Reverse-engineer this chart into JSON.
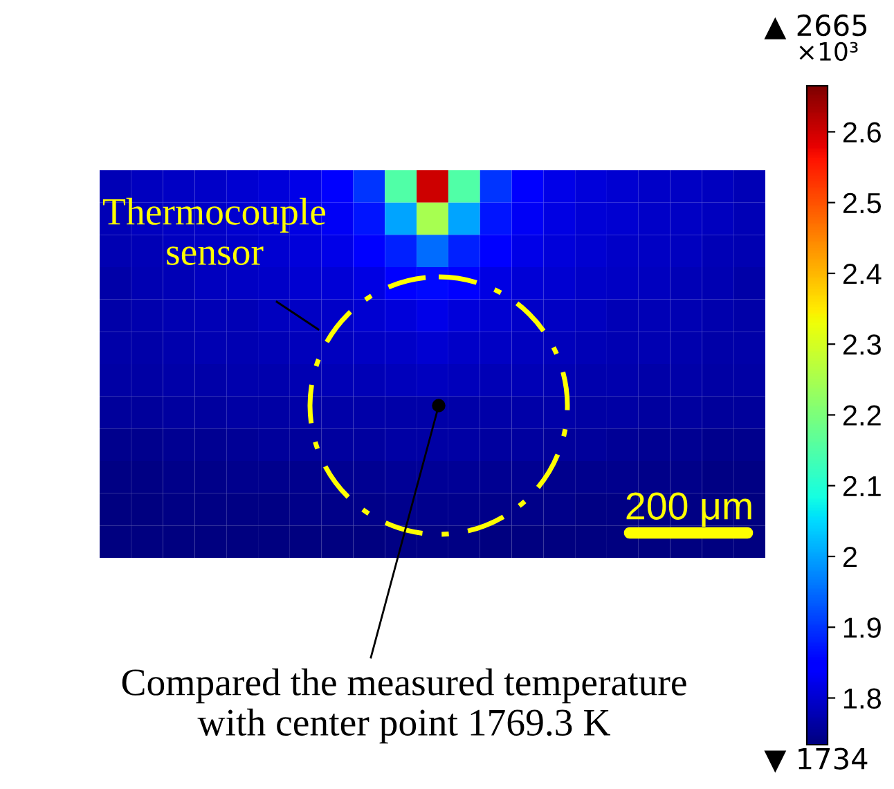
{
  "chart_data": {
    "type": "heatmap",
    "categories": [
      null,
      null,
      null,
      null,
      null,
      null,
      null,
      null,
      null,
      null,
      null,
      null,
      null,
      null,
      null,
      null,
      null,
      null,
      null,
      null,
      null
    ],
    "y_categories": [
      null,
      null,
      null,
      null,
      null,
      null,
      null,
      null,
      null,
      null,
      null,
      null
    ],
    "cells": [
      [
        1.78,
        1.785,
        1.79,
        1.795,
        1.8,
        1.81,
        1.82,
        1.84,
        1.9,
        2.15,
        2.6,
        2.15,
        1.9,
        1.84,
        1.82,
        1.81,
        1.8,
        1.795,
        1.79,
        1.785,
        1.78
      ],
      [
        1.78,
        1.785,
        1.79,
        1.795,
        1.8,
        1.805,
        1.815,
        1.83,
        1.87,
        2.0,
        2.25,
        2.0,
        1.87,
        1.83,
        1.815,
        1.805,
        1.8,
        1.795,
        1.79,
        1.785,
        1.78
      ],
      [
        1.775,
        1.78,
        1.785,
        1.79,
        1.795,
        1.8,
        1.81,
        1.82,
        1.84,
        1.88,
        1.95,
        1.88,
        1.84,
        1.82,
        1.81,
        1.8,
        1.795,
        1.79,
        1.785,
        1.78,
        1.775
      ],
      [
        1.77,
        1.775,
        1.78,
        1.785,
        1.79,
        1.795,
        1.8,
        1.805,
        1.815,
        1.84,
        1.86,
        1.84,
        1.815,
        1.805,
        1.8,
        1.795,
        1.79,
        1.785,
        1.78,
        1.775,
        1.77
      ],
      [
        1.77,
        1.772,
        1.775,
        1.778,
        1.78,
        1.785,
        1.79,
        1.795,
        1.8,
        1.81,
        1.82,
        1.81,
        1.8,
        1.795,
        1.79,
        1.785,
        1.78,
        1.778,
        1.775,
        1.772,
        1.77
      ],
      [
        1.768,
        1.77,
        1.772,
        1.775,
        1.777,
        1.78,
        1.782,
        1.785,
        1.79,
        1.795,
        1.8,
        1.795,
        1.79,
        1.785,
        1.782,
        1.78,
        1.777,
        1.775,
        1.772,
        1.77,
        1.768
      ],
      [
        1.764,
        1.766,
        1.768,
        1.77,
        1.772,
        1.774,
        1.776,
        1.778,
        1.78,
        1.783,
        1.785,
        1.783,
        1.78,
        1.778,
        1.776,
        1.774,
        1.772,
        1.77,
        1.768,
        1.766,
        1.764
      ],
      [
        1.756,
        1.758,
        1.76,
        1.762,
        1.764,
        1.766,
        1.768,
        1.769,
        1.77,
        1.77,
        1.77,
        1.77,
        1.77,
        1.769,
        1.768,
        1.766,
        1.764,
        1.762,
        1.76,
        1.758,
        1.756
      ],
      [
        1.746,
        1.748,
        1.75,
        1.752,
        1.754,
        1.756,
        1.758,
        1.76,
        1.762,
        1.764,
        1.765,
        1.764,
        1.762,
        1.76,
        1.758,
        1.756,
        1.754,
        1.752,
        1.75,
        1.748,
        1.746
      ],
      [
        1.739,
        1.74,
        1.742,
        1.744,
        1.745,
        1.746,
        1.748,
        1.75,
        1.752,
        1.754,
        1.755,
        1.754,
        1.752,
        1.75,
        1.748,
        1.746,
        1.745,
        1.744,
        1.742,
        1.74,
        1.739
      ],
      [
        1.736,
        1.737,
        1.738,
        1.739,
        1.74,
        1.741,
        1.742,
        1.743,
        1.744,
        1.745,
        1.746,
        1.745,
        1.744,
        1.743,
        1.742,
        1.741,
        1.74,
        1.739,
        1.738,
        1.737,
        1.736
      ],
      [
        1.734,
        1.734,
        1.735,
        1.735,
        1.735,
        1.736,
        1.736,
        1.737,
        1.737,
        1.738,
        1.738,
        1.738,
        1.737,
        1.737,
        1.736,
        1.736,
        1.735,
        1.735,
        1.735,
        1.734,
        1.734
      ]
    ],
    "clim": [
      1.734,
      2.665
    ],
    "cticks": [
      1.8,
      1.9,
      2,
      2.1,
      2.2,
      2.3,
      2.4,
      2.5,
      2.6
    ],
    "annotations": [
      "▲ 2665",
      "×10³",
      "▼ 1734",
      "Thermocouple\nsensor",
      "200 μm",
      "Compared the measured temperature\nwith center point 1769.3 K"
    ]
  }
}
